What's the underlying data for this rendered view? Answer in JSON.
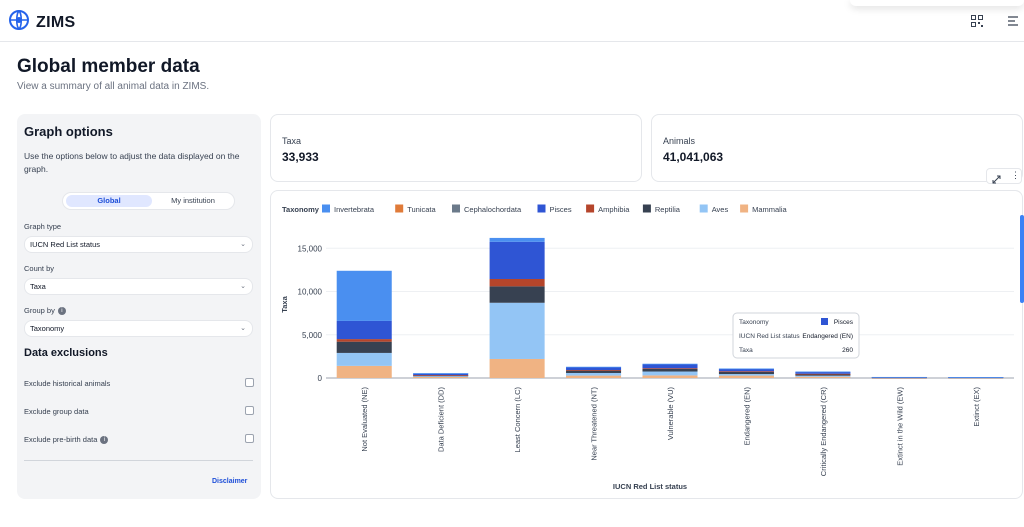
{
  "app": {
    "name": "ZIMS"
  },
  "page": {
    "title": "Global member data",
    "subtitle": "View a summary of all animal data in ZIMS."
  },
  "graph_options": {
    "heading": "Graph options",
    "description": "Use the options below to adjust the data displayed on the graph.",
    "toggle": {
      "selected": "Global",
      "other": "My institution"
    },
    "graph_type": {
      "label": "Graph type",
      "value": "IUCN Red List status"
    },
    "count_by": {
      "label": "Count by",
      "value": "Taxa"
    },
    "group_by": {
      "label": "Group by",
      "value": "Taxonomy"
    },
    "exclusions_heading": "Data exclusions",
    "exclusions": [
      {
        "label": "Exclude historical animals",
        "checked": false
      },
      {
        "label": "Exclude group data",
        "checked": false
      },
      {
        "label": "Exclude pre-birth data",
        "checked": false
      }
    ],
    "disclaimer": "Disclaimer"
  },
  "stats": {
    "taxa": {
      "label": "Taxa",
      "value": "33,933"
    },
    "animals": {
      "label": "Animals",
      "value": "41,041,063"
    }
  },
  "tooltip": {
    "taxonomy_label": "Taxonomy",
    "taxonomy_value": "Pisces",
    "status_label": "IUCN Red List status",
    "status_value": "Endangered (EN)",
    "count_label": "Taxa",
    "count_value": "260"
  },
  "colors": {
    "Mammalia": "#f0b383",
    "Aves": "#93c5f5",
    "Reptilia": "#374151",
    "Amphibia": "#b5452b",
    "Pisces": "#2f55d4",
    "Cephalochordata": "#6b7a8a",
    "Tunicata": "#e07b39",
    "Invertebrata": "#4a8ff0"
  },
  "chart_data": {
    "type": "bar",
    "stacked": true,
    "legend_title": "Taxonomy",
    "legend_order": [
      "Invertebrata",
      "Tunicata",
      "Cephalochordata",
      "Pisces",
      "Amphibia",
      "Reptilia",
      "Aves",
      "Mammalia"
    ],
    "xlabel": "IUCN Red List status",
    "ylabel": "Taxa",
    "ylim": [
      0,
      17000
    ],
    "yticks": [
      0,
      5000,
      10000,
      15000
    ],
    "ytick_labels": [
      "0",
      "5,000",
      "10,000",
      "15,000"
    ],
    "categories": [
      "Not Evaluated (NE)",
      "Data Deficient (DD)",
      "Least Concern (LC)",
      "Near Threatened (NT)",
      "Vulnerable (VU)",
      "Endangered (EN)",
      "Critically Endangered (CR)",
      "Extinct in the Wild (EW)",
      "Extinct (EX)"
    ],
    "series": [
      {
        "name": "Mammalia",
        "values": [
          1400,
          150,
          2200,
          280,
          300,
          280,
          150,
          20,
          20
        ]
      },
      {
        "name": "Aves",
        "values": [
          1500,
          60,
          6500,
          300,
          450,
          180,
          120,
          20,
          30
        ]
      },
      {
        "name": "Reptilia",
        "values": [
          1300,
          100,
          1900,
          280,
          320,
          260,
          180,
          20,
          20
        ]
      },
      {
        "name": "Amphibia",
        "values": [
          300,
          20,
          850,
          60,
          60,
          60,
          40,
          10,
          10
        ]
      },
      {
        "name": "Pisces",
        "values": [
          2100,
          200,
          4300,
          300,
          440,
          260,
          200,
          40,
          10
        ]
      },
      {
        "name": "Cephalochordata",
        "values": [
          0,
          0,
          0,
          0,
          0,
          0,
          0,
          0,
          0
        ]
      },
      {
        "name": "Tunicata",
        "values": [
          0,
          0,
          0,
          0,
          0,
          0,
          0,
          0,
          0
        ]
      },
      {
        "name": "Invertebrata",
        "values": [
          5800,
          30,
          450,
          80,
          80,
          60,
          60,
          10,
          10
        ]
      }
    ]
  }
}
